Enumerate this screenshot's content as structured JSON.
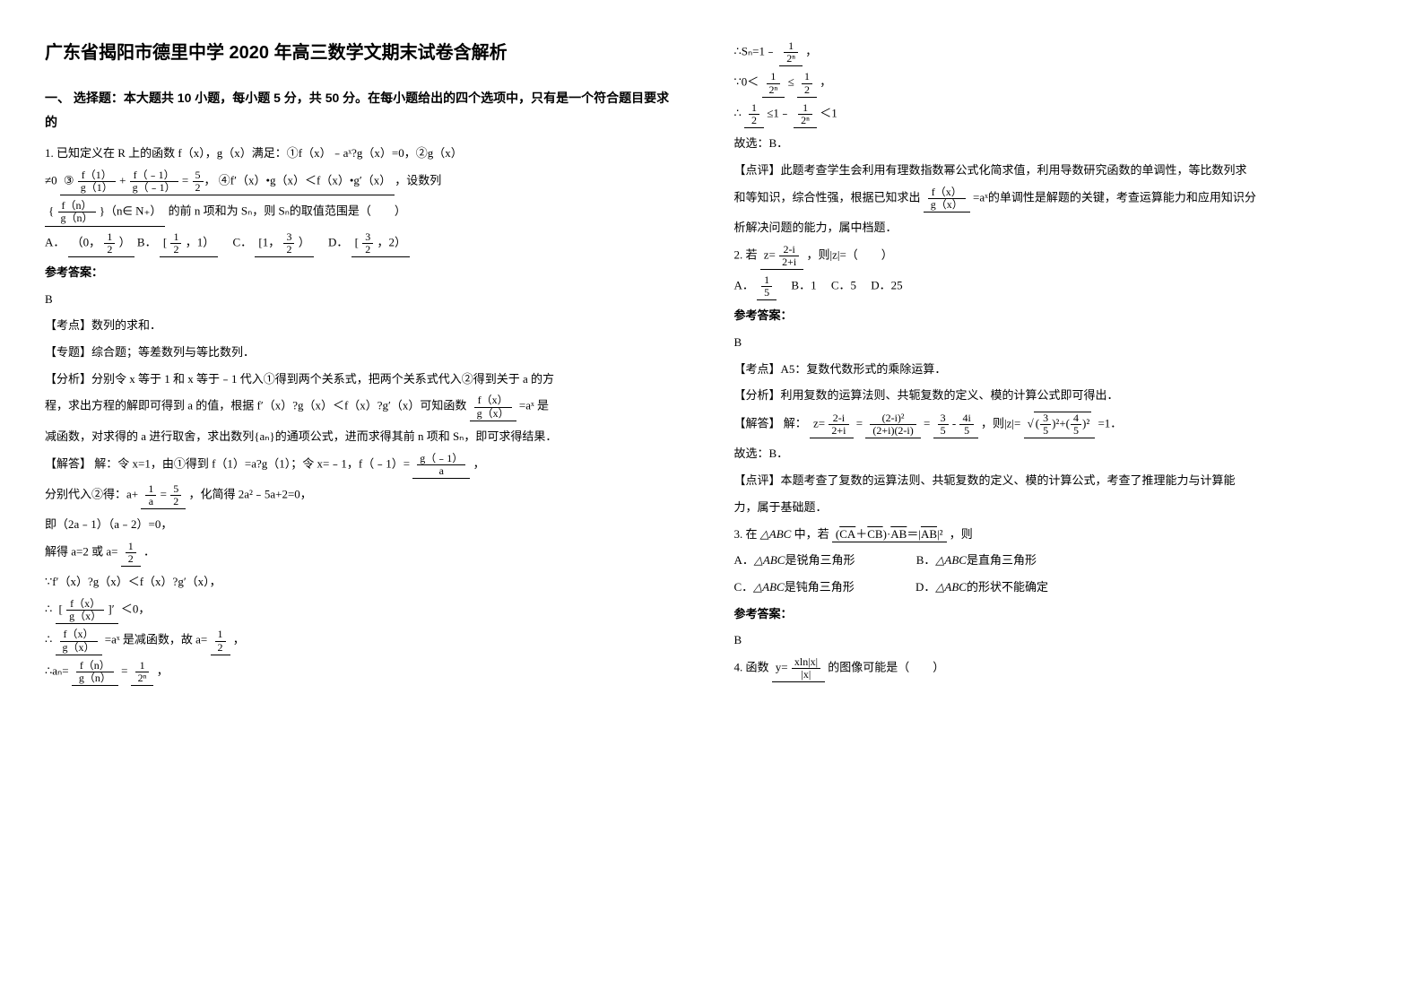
{
  "title": "广东省揭阳市德里中学 2020 年高三数学文期末试卷含解析",
  "section1_heading": "一、 选择题：本大题共 10 小题，每小题 5 分，共 50 分。在每小题给出的四个选项中，只有是一个符合题目要求的",
  "q1": {
    "stem_l1": "1. 已知定义在 R 上的函数 f（x），g（x）满足：①f（x）﹣aˣ?g（x）=0，②g（x）",
    "stem_l2_pre": "≠0",
    "circ3": "③",
    "frac1_num": "f（1）",
    "frac1_den": "g（1）",
    "plus": "+",
    "frac2_num": "f（﹣1）",
    "frac2_den": "g（﹣1）",
    "eq": "=",
    "frac52_num": "5",
    "frac52_den": "2",
    "comma": "，",
    "circ4": "④f′（x）•g（x）＜f（x）•g′（x）",
    "tail": "，设数列",
    "stem_l3_pre": "{",
    "fracn_num": "f（n）",
    "fracn_den": "g（n）",
    "stem_l3_post": "}（n∈ N₊）",
    "stem_l3_tail": "的前 n 项和为 Sₙ，则 Sₙ的取值范围是（　　）",
    "optA_pre": "A．",
    "optA_open": "（0，",
    "optA_mid_num": "1",
    "optA_mid_den": "2",
    "optA_close": "）",
    "optB_pre": "B．",
    "optB_open": "[",
    "optB_mid_num": "1",
    "optB_mid_den": "2",
    "optB_mid2": "，1）",
    "optC_pre": "C．",
    "optC_open": "[1，",
    "optC_mid_num": "3",
    "optC_mid_den": "2",
    "optC_close": "）",
    "optD_pre": "D．",
    "optD_open": "[",
    "optD_mid_num": "3",
    "optD_mid_den": "2",
    "optD_close": "，2）"
  },
  "q1_ans_label": "参考答案：",
  "q1_ans": "B",
  "q1_kd_label": "【考点】",
  "q1_kd": "数列的求和．",
  "q1_zt_label": "【专题】",
  "q1_zt": "综合题；等差数列与等比数列．",
  "q1_fx_label": "【分析】",
  "q1_fx_l1": "分别令 x 等于 1 和 x 等于﹣1 代入①得到两个关系式，把两个关系式代入②得到关于 a 的方",
  "q1_fx_l2_pre": "程，求出方程的解即可得到 a 的值，根据 f′（x）?g（x）＜f（x）?g′（x）可知函数",
  "q1_fx_l2_num": "f（x）",
  "q1_fx_l2_den": "g（x）",
  "q1_fx_l2_post": "=aˣ 是",
  "q1_fx_l3": "减函数，对求得的 a 进行取舍，求出数列{aₙ}的通项公式，进而求得其前 n 项和 Sₙ，即可求得结果．",
  "q1_jd_label": "【解答】",
  "q1_jd_l1_pre": "解：令 x=1，由①得到 f（1）=a?g（1）；令 x=﹣1，f（﹣1）=",
  "q1_jd_l1_num": "g（﹣1）",
  "q1_jd_l1_den": "a",
  "q1_jd_l1_post": "，",
  "q1_jd_l2_pre": "分别代入②得：a+",
  "q1_jd_l2_n1": "1",
  "q1_jd_l2_d1": "a",
  "q1_jd_l2_eq": "=",
  "q1_jd_l2_n2": "5",
  "q1_jd_l2_d2": "2",
  "q1_jd_l2_post": "，化简得 2a²﹣5a+2=0，",
  "q1_jd_l3": "即（2a﹣1）（a﹣2）=0，",
  "q1_jd_l4_pre": "解得 a=2 或 a=",
  "q1_jd_l4_n": "1",
  "q1_jd_l4_d": "2",
  "q1_jd_l4_post": "．",
  "q1_jd_l5": "∵f′（x）?g（x）＜f（x）?g′（x），",
  "q1_jd_l6_pre": "∴",
  "q1_jd_l6_n": "f（x）",
  "q1_jd_l6_d": "g（x）",
  "q1_jd_l6_bkt": "[",
  "q1_jd_l6_exp": "]′",
  "q1_jd_l6_post": "＜0，",
  "q1_jd_l7_pre": "∴",
  "q1_jd_l7_n": "f（x）",
  "q1_jd_l7_d": "g（x）",
  "q1_jd_l7_eq": "=aˣ 是减函数，故 a=",
  "q1_jd_l7_n2": "1",
  "q1_jd_l7_d2": "2",
  "q1_jd_l7_post": "，",
  "q1_jd_l8_pre": "∴aₙ=",
  "q1_jd_l8_n": "f（n）",
  "q1_jd_l8_d": "g（n）",
  "q1_jd_l8_eq": "=",
  "q1_jd_l8_n2": "1",
  "q1_jd_l8_d2": "2ⁿ",
  "q1_jd_l8_post": "，",
  "r_l1_pre": "∴Sₙ=1﹣",
  "r_l1_n": "1",
  "r_l1_d": "2ⁿ",
  "r_l1_post": "，",
  "r_l2_pre": "∵0＜",
  "r_l2_n": "1",
  "r_l2_d": "2ⁿ",
  "r_l2_mid": "≤",
  "r_l2_n2": "1",
  "r_l2_d2": "2",
  "r_l2_post": "，",
  "r_l3_pre": "∴",
  "r_l3_n": "1",
  "r_l3_d": "2",
  "r_l3_mid": "≤1﹣",
  "r_l3_n2": "1",
  "r_l3_d2": "2ⁿ",
  "r_l3_post": "＜1",
  "r_l4": "故选：B．",
  "q1_dp_label": "【点评】",
  "q1_dp_l1": "此题考查学生会利用有理数指数幂公式化简求值，利用导数研究函数的单调性，等比数列求",
  "q1_dp_l2_pre": "和等知识，综合性强，根据已知求出",
  "q1_dp_l2_n": "f（x）",
  "q1_dp_l2_d": "g（x）",
  "q1_dp_l2_post": "=aˣ的单调性是解题的关键，考查运算能力和应用知识分",
  "q1_dp_l3": "析解决问题的能力，属中档题．",
  "q2_stem_pre": "2. 若",
  "q2_z": "z=",
  "q2_n": "2-i",
  "q2_d": "2+i",
  "q2_stem_post": "，则|z|=（　　）",
  "q2_optA_pre": "A．",
  "q2_optA_n": "1",
  "q2_optA_d": "5",
  "q2_optB": "B．1",
  "q2_optC": "C．5",
  "q2_optD": "D．25",
  "q2_ans_label": "参考答案：",
  "q2_ans": "B",
  "q2_kd_label": "【考点】",
  "q2_kd": "A5：复数代数形式的乘除运算．",
  "q2_fx_label": "【分析】",
  "q2_fx": "利用复数的运算法则、共轭复数的定义、模的计算公式即可得出．",
  "q2_jd_label": "【解答】",
  "q2_jd_pre": "解：",
  "q2_jd_z": "z=",
  "q2_jd_n1": "2-i",
  "q2_jd_d1": "2+i",
  "q2_jd_eq1": "=",
  "q2_jd_n2": "(2-i)²",
  "q2_jd_d2": "(2+i)(2-i)",
  "q2_jd_eq2": "=",
  "q2_jd_n3": "3",
  "q2_jd_d3": "5",
  "q2_jd_minus": "-",
  "q2_jd_n4": "4i",
  "q2_jd_d4": "5",
  "q2_jd_mid": "，则|z|=",
  "q2_jd_sqrt_open": "√",
  "q2_jd_sn1": "3",
  "q2_jd_sd1": "5",
  "q2_jd_sp": "(",
  "q2_jd_sp2": ")²+(",
  "q2_jd_sn2": "4",
  "q2_jd_sd2": "5",
  "q2_jd_sp3": ")²",
  "q2_jd_post": "=1．",
  "q2_jd_l2": "故选：B．",
  "q2_dp_label": "【点评】",
  "q2_dp": "本题考查了复数的运算法则、共轭复数的定义、模的计算公式，考查了推理能力与计算能",
  "q2_dp_l2": "力，属于基础题．",
  "q3_stem_pre": "3. 在",
  "q3_abc": "△ABC",
  "q3_mid": "中，若",
  "q3_expr": "(CA＋CB)·AB＝|AB|²",
  "q3_stem_post": "，则",
  "q3_optA": "A．",
  "q3_optA_t": "△ABC",
  "q3_optA_p": "是锐角三角形",
  "q3_optB": "B．",
  "q3_optB_t": "△ABC",
  "q3_optB_p": "是直角三角形",
  "q3_optC": "C．",
  "q3_optC_t": "△ABC",
  "q3_optC_p": "是钝角三角形",
  "q3_optD": "D．",
  "q3_optD_t": "△ABC",
  "q3_optD_p": "的形状不能确定",
  "q3_ans_label": "参考答案：",
  "q3_ans": "B",
  "q4_stem_pre": "4. 函数",
  "q4_y": "y=",
  "q4_n": "xln|x|",
  "q4_d": "|x|",
  "q4_stem_post": "的图像可能是（　　）"
}
